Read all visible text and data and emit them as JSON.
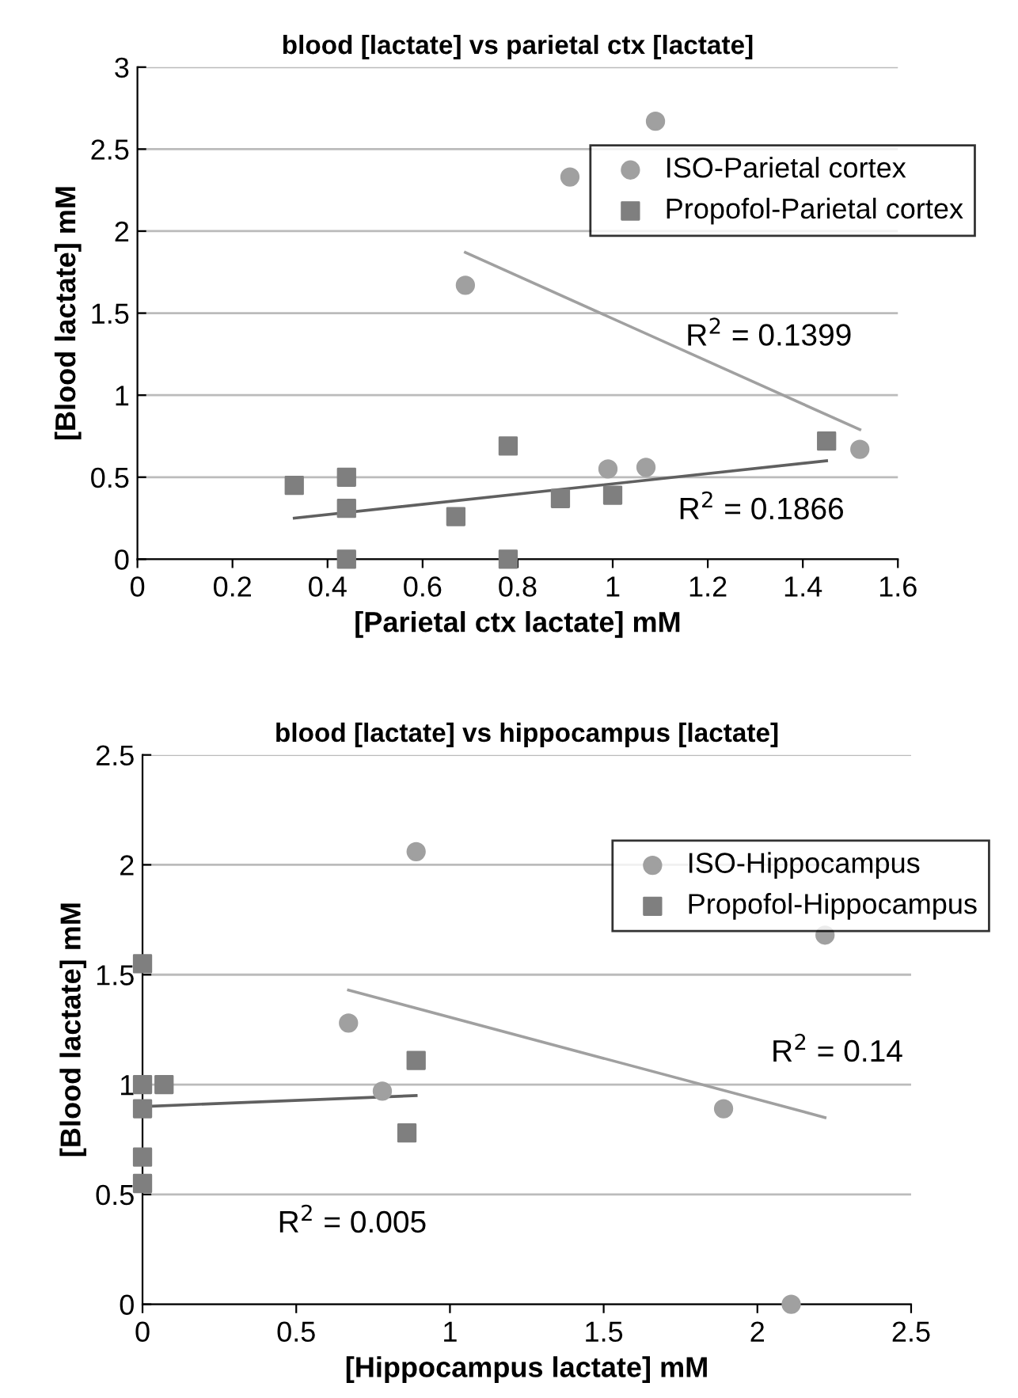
{
  "chart_data": [
    {
      "type": "scatter",
      "title": "blood [lactate] vs parietal ctx [lactate]",
      "xlabel": "[Parietal ctx lactate] mM",
      "ylabel": "[Blood lactate] mM",
      "xlim": [
        0,
        1.6
      ],
      "xticks": [
        0,
        0.2,
        0.4,
        0.6,
        0.8,
        1,
        1.2,
        1.4,
        1.6
      ],
      "ylim": [
        0,
        3
      ],
      "yticks": [
        0,
        0.5,
        1,
        1.5,
        2,
        2.5,
        3
      ],
      "grid": "y",
      "legend": "top right",
      "series": [
        {
          "name": "ISO-Parietal cortex",
          "color": "#a0a0a0",
          "marker": "circle",
          "x": [
            0.69,
            0.91,
            1.09,
            0.99,
            1.07,
            1.52
          ],
          "values": [
            1.67,
            2.33,
            2.67,
            0.55,
            0.56,
            0.67
          ]
        },
        {
          "name": "Propofol-Parietal cortex",
          "color": "#7f7f7f",
          "marker": "square",
          "x": [
            0.33,
            0.44,
            0.44,
            0.44,
            0.67,
            0.78,
            0.78,
            0.89,
            1.0,
            1.45
          ],
          "values": [
            0.45,
            0.5,
            0.31,
            0.0,
            0.26,
            0.69,
            0.0,
            0.37,
            0.39,
            0.72
          ]
        },
        {
          "type": "line",
          "color": "#a0a0a0",
          "x": [
            0.69,
            1.52
          ],
          "values": [
            1.87,
            0.79
          ]
        },
        {
          "type": "line",
          "color": "#606060",
          "x": [
            0.33,
            1.45
          ],
          "values": [
            0.25,
            0.6
          ]
        }
      ],
      "annotations": [
        "R$^{2}$ = 0.1399",
        "R$^{2}$ = 0.1866"
      ]
    },
    {
      "type": "scatter",
      "title": "blood [lactate] vs hippocampus [lactate]",
      "xlabel": "[Hippocampus lactate] mM",
      "ylabel": "[Blood lactate] mM",
      "xlim": [
        0,
        2.5
      ],
      "xticks": [
        0,
        0.5,
        1,
        1.5,
        2,
        2.5
      ],
      "ylim": [
        0,
        2.5
      ],
      "yticks": [
        0,
        0.5,
        1,
        1.5,
        2,
        2.5
      ],
      "grid": "y",
      "legend": "top right",
      "series": [
        {
          "name": "ISO-Hippocampus",
          "color": "#a0a0a0",
          "marker": "circle",
          "x": [
            0.67,
            0.78,
            0.89,
            1.89,
            2.11,
            2.22
          ],
          "values": [
            1.28,
            0.97,
            2.06,
            0.89,
            0.0,
            1.68
          ]
        },
        {
          "name": "Propofol-Hippocampus",
          "color": "#7f7f7f",
          "marker": "square",
          "x": [
            0,
            0,
            0,
            0,
            0,
            0.07,
            0.89,
            0.86
          ],
          "values": [
            1.55,
            1.0,
            0.89,
            0.67,
            0.55,
            1.0,
            1.11,
            0.78
          ]
        },
        {
          "type": "line",
          "color": "#a0a0a0",
          "x": [
            0.67,
            2.22
          ],
          "values": [
            1.43,
            0.85
          ]
        },
        {
          "type": "line",
          "color": "#606060",
          "x": [
            0,
            0.89
          ],
          "values": [
            0.9,
            0.95
          ]
        }
      ],
      "annotations": [
        "R$^{2}$ = 0.14",
        "R$^{2}$ = 0.005"
      ]
    }
  ]
}
